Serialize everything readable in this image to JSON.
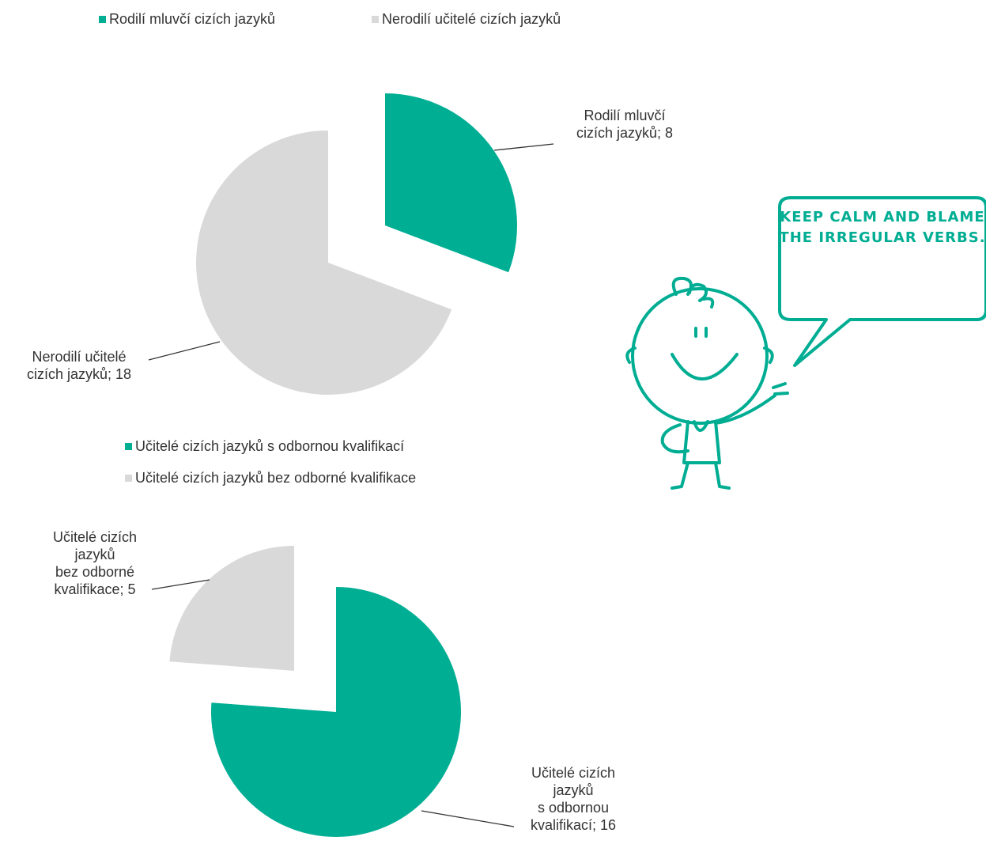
{
  "chart_data": [
    {
      "type": "pie",
      "categories": [
        "Rodilí mluvčí cizích jazyků",
        "Nerodilí učitelé cizích jazyků"
      ],
      "values": [
        8,
        18
      ],
      "value_labels": [
        "Rodilí mluvčí\ncizích jazyků; 8",
        "Nerodilí učitelé\ncizích jazyků; 18"
      ],
      "colors": [
        "#00ae94",
        "#d9d9d9"
      ],
      "legend": "top"
    },
    {
      "type": "pie",
      "categories": [
        "Učitelé cizích jazyků s odbornou kvalifikací",
        "Učitelé cizích jazyků bez odborné kvalifikace"
      ],
      "values": [
        16,
        5
      ],
      "value_labels": [
        "Učitelé cizích\njazyků\ns odbornou\nkvalifikací; 16",
        "Učitelé cizích\njazyků\nbez odborné\nkvalifikace; 5"
      ],
      "colors": [
        "#00ae94",
        "#d9d9d9"
      ],
      "legend": "top"
    }
  ],
  "bubble_text": "KEEP CALM AND BLAME THE IRREGULAR VERBS."
}
